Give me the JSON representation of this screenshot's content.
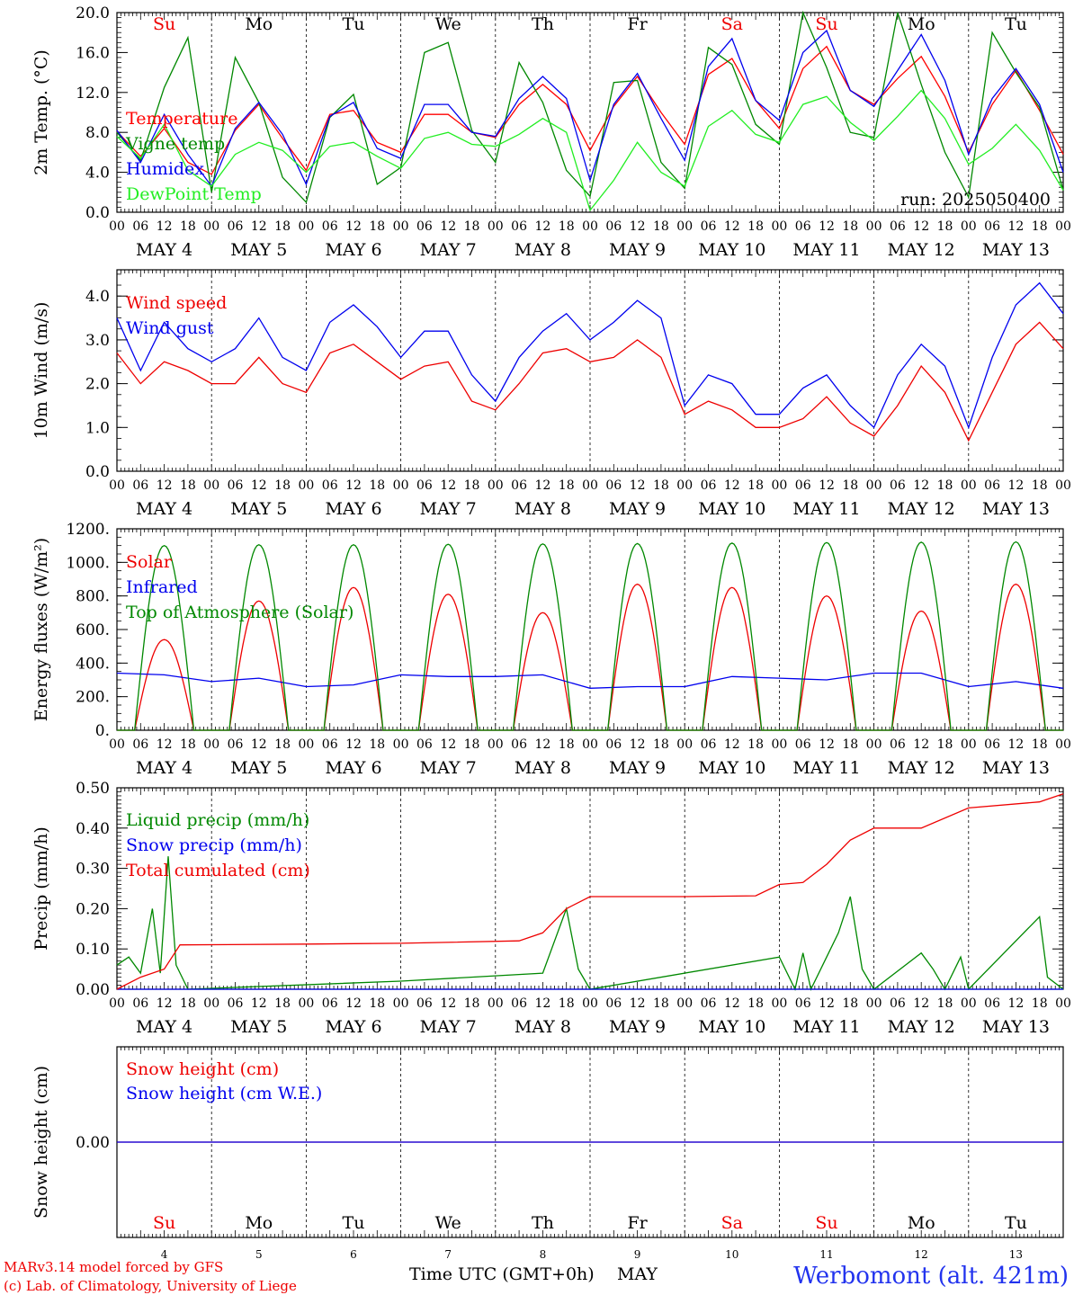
{
  "colors": {
    "temperature": "#ff0000",
    "vigne": "#008800",
    "humidex": "#0000ee",
    "dewpoint": "#22ee22",
    "red": "#ee0000",
    "blue": "#0000ee",
    "green": "#008800",
    "axis": "#000000"
  },
  "days": [
    {
      "abbr": "Su",
      "num": "4",
      "weekend": true
    },
    {
      "abbr": "Mo",
      "num": "5",
      "weekend": false
    },
    {
      "abbr": "Tu",
      "num": "6",
      "weekend": false
    },
    {
      "abbr": "We",
      "num": "7",
      "weekend": false
    },
    {
      "abbr": "Th",
      "num": "8",
      "weekend": false
    },
    {
      "abbr": "Fr",
      "num": "9",
      "weekend": false
    },
    {
      "abbr": "Sa",
      "num": "10",
      "weekend": true
    },
    {
      "abbr": "Su",
      "num": "11",
      "weekend": true
    },
    {
      "abbr": "Mo",
      "num": "12",
      "weekend": false
    },
    {
      "abbr": "Tu",
      "num": "13",
      "weekend": false
    }
  ],
  "hour_ticks": [
    "00",
    "06",
    "12",
    "18"
  ],
  "date_labels": [
    "MAY  4",
    "MAY  5",
    "MAY  6",
    "MAY  7",
    "MAY  8",
    "MAY  9",
    "MAY 10",
    "MAY 11",
    "MAY 12",
    "MAY 13"
  ],
  "run_label": "run: 2025050400",
  "footer": {
    "model": "MARv3.14 model forced by GFS",
    "copyright": "(c) Lab. of Climatology, University of Liege",
    "xlabel": "Time UTC (GMT+0h)",
    "month": "MAY",
    "station": "Werbomont (alt. 421m)"
  },
  "chart_data": [
    {
      "type": "line",
      "ylabel": "2m Temp. (°C)",
      "ylim": [
        0,
        20
      ],
      "yticks": [
        "0.0",
        "4.0",
        "8.0",
        "12.0",
        "16.0",
        "20.0"
      ],
      "legend_position": "top-left",
      "x_unit": "hours since 2025-05-04 00 UTC",
      "series": [
        {
          "name": "Temperature",
          "color": "#ff0000",
          "x": [
            0,
            6,
            12,
            18,
            24,
            30,
            36,
            42,
            48,
            54,
            60,
            66,
            72,
            78,
            84,
            90,
            96,
            102,
            108,
            114,
            120,
            126,
            132,
            138,
            144,
            150,
            156,
            162,
            168,
            174,
            180,
            186,
            192,
            198,
            204,
            210,
            216,
            222,
            228,
            234,
            240
          ],
          "values": [
            8.1,
            5.6,
            8.4,
            5.0,
            3.8,
            8.2,
            10.8,
            7.4,
            4.2,
            9.8,
            10.2,
            7.0,
            6.0,
            9.8,
            9.8,
            8.0,
            7.5,
            10.8,
            12.8,
            10.8,
            6.2,
            10.6,
            13.6,
            10.0,
            6.8,
            13.8,
            15.4,
            11.2,
            8.4,
            14.4,
            16.6,
            12.2,
            10.8,
            13.4,
            15.6,
            11.6,
            6.0,
            10.8,
            14.2,
            10.2,
            5.8
          ]
        },
        {
          "name": "Vigne temp",
          "color": "#008800",
          "x": [
            0,
            6,
            12,
            18,
            24,
            30,
            36,
            42,
            48,
            54,
            60,
            66,
            72,
            78,
            84,
            90,
            96,
            102,
            108,
            114,
            120,
            126,
            132,
            138,
            144,
            150,
            156,
            162,
            168,
            174,
            180,
            186,
            192,
            198,
            204,
            210,
            216,
            222,
            228,
            234,
            240
          ],
          "values": [
            8.0,
            5.2,
            12.5,
            17.5,
            2.0,
            15.5,
            11.0,
            3.5,
            1.0,
            9.5,
            11.8,
            2.8,
            4.5,
            16.0,
            17.0,
            8.2,
            5.0,
            15.0,
            11.0,
            4.2,
            1.6,
            13.0,
            13.2,
            5.0,
            2.4,
            16.5,
            14.8,
            8.8,
            6.8,
            20.0,
            14.5,
            8.0,
            7.5,
            20.0,
            12.8,
            6.0,
            1.5,
            18.0,
            14.0,
            10.5,
            2.2
          ]
        },
        {
          "name": "Humidex",
          "color": "#0000ee",
          "x": [
            0,
            6,
            12,
            18,
            24,
            30,
            36,
            42,
            48,
            54,
            60,
            66,
            72,
            78,
            84,
            90,
            96,
            102,
            108,
            114,
            120,
            126,
            132,
            138,
            144,
            150,
            156,
            162,
            168,
            174,
            180,
            186,
            192,
            198,
            204,
            210,
            216,
            222,
            228,
            234,
            240
          ],
          "values": [
            8.2,
            5.0,
            9.8,
            5.8,
            2.6,
            8.4,
            11.0,
            7.8,
            2.8,
            9.6,
            11.0,
            6.4,
            5.4,
            10.8,
            10.8,
            8.0,
            7.6,
            11.4,
            13.6,
            11.4,
            3.2,
            10.8,
            13.9,
            9.4,
            5.2,
            14.6,
            17.4,
            11.2,
            9.2,
            16.0,
            18.2,
            12.2,
            10.6,
            14.2,
            17.8,
            13.2,
            5.8,
            11.4,
            14.4,
            10.8,
            4.0
          ]
        },
        {
          "name": "DewPoint Temp",
          "color": "#22ee22",
          "x": [
            0,
            6,
            12,
            18,
            24,
            30,
            36,
            42,
            48,
            54,
            60,
            66,
            72,
            78,
            84,
            90,
            96,
            102,
            108,
            114,
            120,
            126,
            132,
            138,
            144,
            150,
            156,
            162,
            168,
            174,
            180,
            186,
            192,
            198,
            204,
            210,
            216,
            222,
            228,
            234,
            240
          ],
          "values": [
            7.6,
            5.4,
            8.8,
            4.2,
            2.6,
            5.8,
            7.0,
            6.2,
            4.0,
            6.6,
            7.0,
            5.6,
            4.4,
            7.4,
            8.0,
            6.8,
            6.6,
            7.8,
            9.4,
            8.0,
            0.2,
            3.2,
            7.0,
            4.0,
            2.6,
            8.6,
            10.2,
            7.8,
            7.0,
            10.8,
            11.6,
            9.0,
            7.2,
            9.6,
            12.2,
            9.4,
            4.8,
            6.4,
            8.8,
            6.2,
            2.2
          ]
        }
      ]
    },
    {
      "type": "line",
      "ylabel": "10m Wind (m/s)",
      "ylim": [
        0,
        4.6
      ],
      "yticks": [
        "0.0",
        "1.0",
        "2.0",
        "3.0",
        "4.0"
      ],
      "legend_position": "top-left",
      "x_unit": "hours since 2025-05-04 00 UTC",
      "series": [
        {
          "name": "Wind speed",
          "color": "#ee0000",
          "x": [
            0,
            6,
            12,
            18,
            24,
            30,
            36,
            42,
            48,
            54,
            60,
            66,
            72,
            78,
            84,
            90,
            96,
            102,
            108,
            114,
            120,
            126,
            132,
            138,
            144,
            150,
            156,
            162,
            168,
            174,
            180,
            186,
            192,
            198,
            204,
            210,
            216,
            222,
            228,
            234,
            240
          ],
          "values": [
            2.7,
            2.0,
            2.5,
            2.3,
            2.0,
            2.0,
            2.6,
            2.0,
            1.8,
            2.7,
            2.9,
            2.5,
            2.1,
            2.4,
            2.5,
            1.6,
            1.4,
            2.0,
            2.7,
            2.8,
            2.5,
            2.6,
            3.0,
            2.6,
            1.3,
            1.6,
            1.4,
            1.0,
            1.0,
            1.2,
            1.7,
            1.1,
            0.8,
            1.5,
            2.4,
            1.8,
            0.7,
            1.8,
            2.9,
            3.4,
            2.8
          ]
        },
        {
          "name": "Wind gust",
          "color": "#0000ee",
          "x": [
            0,
            6,
            12,
            18,
            24,
            30,
            36,
            42,
            48,
            54,
            60,
            66,
            72,
            78,
            84,
            90,
            96,
            102,
            108,
            114,
            120,
            126,
            132,
            138,
            144,
            150,
            156,
            162,
            168,
            174,
            180,
            186,
            192,
            198,
            204,
            210,
            216,
            222,
            228,
            234,
            240
          ],
          "values": [
            3.5,
            2.3,
            3.4,
            2.8,
            2.5,
            2.8,
            3.5,
            2.6,
            2.3,
            3.4,
            3.8,
            3.3,
            2.6,
            3.2,
            3.2,
            2.2,
            1.6,
            2.6,
            3.2,
            3.6,
            3.0,
            3.4,
            3.9,
            3.5,
            1.5,
            2.2,
            2.0,
            1.3,
            1.3,
            1.9,
            2.2,
            1.5,
            1.0,
            2.2,
            2.9,
            2.4,
            1.0,
            2.6,
            3.8,
            4.3,
            3.6
          ]
        }
      ]
    },
    {
      "type": "line",
      "ylabel": "Energy fluxes (W/m²)",
      "ylim": [
        0,
        1200
      ],
      "yticks": [
        "0.",
        "200.",
        "400.",
        "600.",
        "800.",
        "1000.",
        "1200."
      ],
      "legend_position": "top-left",
      "x_unit": "hours since 2025-05-04 00 UTC",
      "series": [
        {
          "name": "Solar",
          "color": "#ee0000",
          "daily_peak": [
            540,
            770,
            850,
            810,
            700,
            870,
            850,
            800,
            710,
            870
          ]
        },
        {
          "name": "Infrared",
          "color": "#0000ee",
          "x": [
            0,
            12,
            24,
            36,
            48,
            60,
            72,
            84,
            96,
            108,
            120,
            132,
            144,
            156,
            168,
            180,
            192,
            204,
            216,
            228,
            240
          ],
          "values": [
            340,
            330,
            290,
            310,
            260,
            270,
            330,
            320,
            320,
            330,
            250,
            260,
            260,
            320,
            310,
            300,
            340,
            340,
            260,
            290,
            250
          ]
        },
        {
          "name": "Top of Atmosphere (Solar)",
          "color": "#008800",
          "daily_peak": [
            1100,
            1105,
            1105,
            1108,
            1110,
            1112,
            1115,
            1118,
            1120,
            1122
          ]
        }
      ]
    },
    {
      "type": "line",
      "ylabel": "Precip (mm/h)",
      "ylim": [
        0,
        0.5
      ],
      "yticks": [
        "0.00",
        "0.10",
        "0.20",
        "0.30",
        "0.40",
        "0.50"
      ],
      "legend_position": "top-left",
      "x_unit": "hours since 2025-05-04 00 UTC",
      "series": [
        {
          "name": "Liquid precip (mm/h)",
          "color": "#008800",
          "x": [
            0,
            3,
            6,
            9,
            11,
            13,
            15,
            18,
            72,
            108,
            114,
            117,
            120,
            168,
            172,
            174,
            176,
            180,
            183,
            186,
            189,
            192,
            204,
            207,
            210,
            214,
            216,
            234,
            236,
            240
          ],
          "values": [
            0.06,
            0.08,
            0.04,
            0.2,
            0.04,
            0.33,
            0.06,
            0.0,
            0.02,
            0.04,
            0.2,
            0.05,
            0.0,
            0.08,
            0.0,
            0.09,
            0.0,
            0.08,
            0.14,
            0.23,
            0.05,
            0.0,
            0.09,
            0.05,
            0.0,
            0.08,
            0.0,
            0.18,
            0.03,
            0.0
          ]
        },
        {
          "name": "Snow precip (mm/h)",
          "color": "#0000ee",
          "x": [
            0,
            240
          ],
          "values": [
            0.0,
            0.0
          ]
        },
        {
          "name": "Total cumulated (cm)",
          "color": "#ee0000",
          "x": [
            0,
            6,
            12,
            16,
            48,
            72,
            102,
            108,
            114,
            120,
            144,
            162,
            168,
            174,
            180,
            186,
            192,
            204,
            216,
            234,
            240
          ],
          "values": [
            0.0,
            0.03,
            0.05,
            0.11,
            0.112,
            0.114,
            0.12,
            0.14,
            0.2,
            0.23,
            0.23,
            0.232,
            0.26,
            0.265,
            0.31,
            0.37,
            0.4,
            0.4,
            0.45,
            0.465,
            0.485
          ]
        }
      ]
    },
    {
      "type": "line",
      "ylabel": "Snow height (cm)",
      "yticks": [
        "0.00"
      ],
      "legend_position": "top-left",
      "x_unit": "hours since 2025-05-04 00 UTC",
      "series": [
        {
          "name": "Snow height (cm)",
          "color": "#ee0000",
          "x": [
            0,
            240
          ],
          "values": [
            0.0,
            0.0
          ]
        },
        {
          "name": "Snow height (cm W.E.)",
          "color": "#0000ee",
          "x": [
            0,
            240
          ],
          "values": [
            0.0,
            0.0
          ]
        }
      ]
    }
  ]
}
